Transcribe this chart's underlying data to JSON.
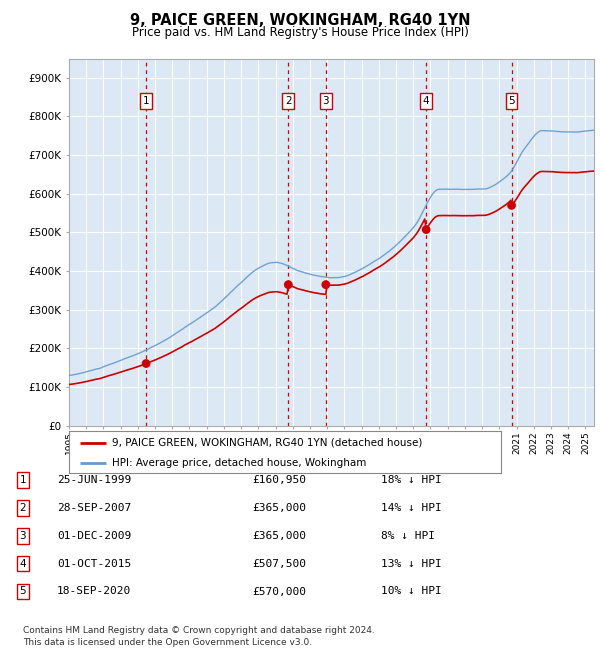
{
  "title": "9, PAICE GREEN, WOKINGHAM, RG40 1YN",
  "subtitle": "Price paid vs. HM Land Registry's House Price Index (HPI)",
  "background_color": "#dce9f5",
  "grid_color": "#ffffff",
  "hpi_color": "#6699cc",
  "price_color": "#cc0000",
  "marker_color": "#cc0000",
  "dashed_color": "#cc0000",
  "xlim_start": 1995.0,
  "xlim_end": 2025.5,
  "transactions": [
    {
      "num": 1,
      "date": "25-JUN-1999",
      "year": 1999.48,
      "price": 160950,
      "pct": "18% ↓ HPI"
    },
    {
      "num": 2,
      "date": "28-SEP-2007",
      "year": 2007.74,
      "price": 365000,
      "pct": "14% ↓ HPI"
    },
    {
      "num": 3,
      "date": "01-DEC-2009",
      "year": 2009.92,
      "price": 365000,
      "pct": "8% ↓ HPI"
    },
    {
      "num": 4,
      "date": "01-OCT-2015",
      "year": 2015.75,
      "price": 507500,
      "pct": "13% ↓ HPI"
    },
    {
      "num": 5,
      "date": "18-SEP-2020",
      "year": 2020.71,
      "price": 570000,
      "pct": "10% ↓ HPI"
    }
  ],
  "legend_label_price": "9, PAICE GREEN, WOKINGHAM, RG40 1YN (detached house)",
  "legend_label_hpi": "HPI: Average price, detached house, Wokingham",
  "footer": "Contains HM Land Registry data © Crown copyright and database right 2024.\nThis data is licensed under the Open Government Licence v3.0.",
  "yticks": [
    0,
    100000,
    200000,
    300000,
    400000,
    500000,
    600000,
    700000,
    800000,
    900000
  ],
  "ytick_labels": [
    "£0",
    "£100K",
    "£200K",
    "£300K",
    "£400K",
    "£500K",
    "£600K",
    "£700K",
    "£800K",
    "£900K"
  ]
}
